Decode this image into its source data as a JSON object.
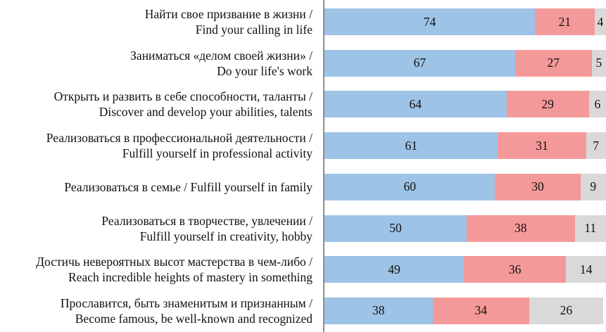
{
  "chart_data": {
    "type": "bar",
    "orientation": "horizontal",
    "stacked": true,
    "categories": [
      [
        "Найти свое призвание в жизни /",
        "Find your calling in life"
      ],
      [
        "Заниматься «делом своей жизни» /",
        "Do your life's work"
      ],
      [
        "Открыть и развить в себе способности, таланты /",
        "Discover and develop your abilities, talents"
      ],
      [
        "Реализоваться в профессиональной деятельности /",
        "Fulfill yourself in professional activity"
      ],
      [
        "Реализоваться в семье / Fulfill yourself in family"
      ],
      [
        "Реализоваться в творчестве, увлечении /",
        "Fulfill yourself in creativity, hobby"
      ],
      [
        "Достичь невероятных высот мастерства в чем-либо /",
        "Reach incredible heights of mastery in something"
      ],
      [
        "Прославится, быть знаменитым и признанным /",
        "Become famous, be well-known and recognized"
      ]
    ],
    "series": [
      {
        "name": "series-1",
        "color": "#9dc3e6",
        "values": [
          74,
          67,
          64,
          61,
          60,
          50,
          49,
          38
        ]
      },
      {
        "name": "series-2",
        "color": "#f4999a",
        "values": [
          21,
          27,
          29,
          31,
          30,
          38,
          36,
          34
        ]
      },
      {
        "name": "series-3",
        "color": "#d9d9d9",
        "values": [
          4,
          5,
          6,
          7,
          9,
          11,
          14,
          26
        ]
      }
    ],
    "xlim": [
      0,
      100
    ],
    "grid": false,
    "legend": "none"
  }
}
